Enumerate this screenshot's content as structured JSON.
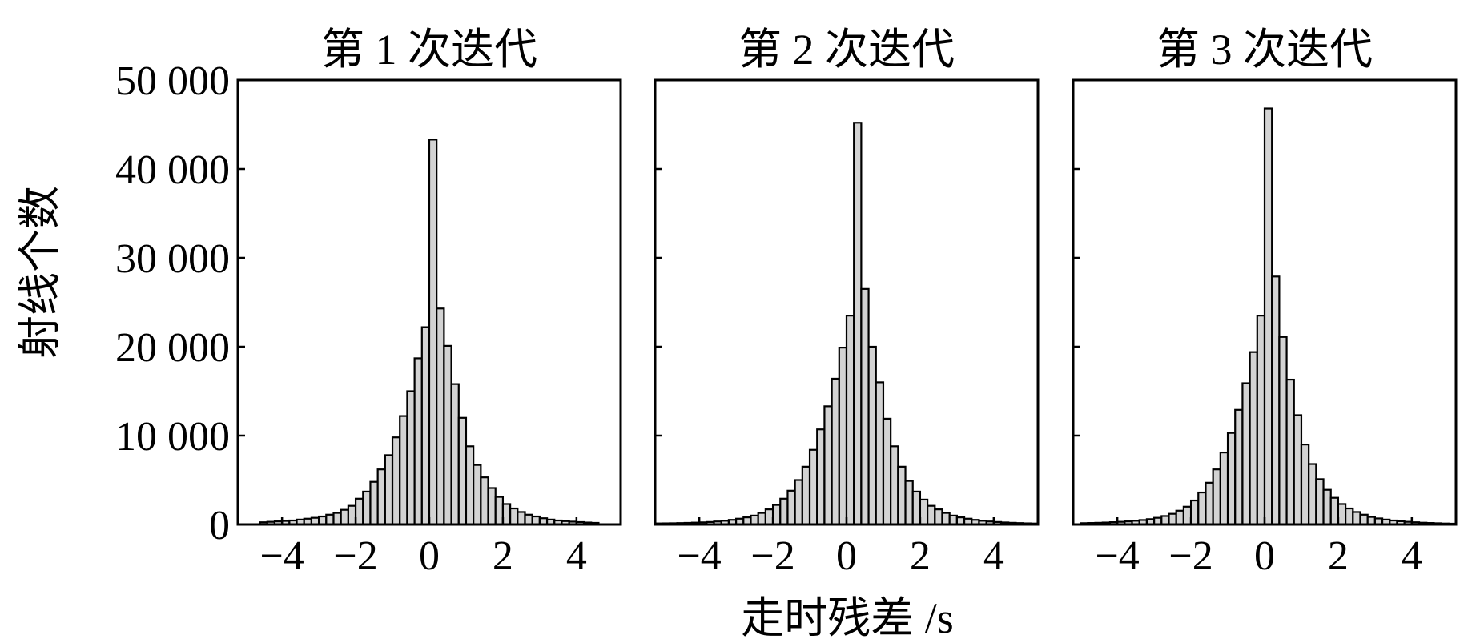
{
  "figure": {
    "ylabel": "射线个数",
    "xlabel": "走时残差 /s"
  },
  "chart_data": [
    {
      "type": "bar",
      "title": "第 1 次迭代",
      "xlabel": "走时残差 /s",
      "ylabel": "射线个数",
      "xlim": [
        -5.2,
        5.2
      ],
      "ylim": [
        0,
        50000
      ],
      "bin_width": 0.2,
      "xticks": [
        -4,
        -2,
        0,
        2,
        4
      ],
      "xtick_labels": [
        "−4",
        "−2",
        "0",
        "2",
        "4"
      ],
      "yticks": [
        0,
        10000,
        20000,
        30000,
        40000,
        50000
      ],
      "ytick_labels": [
        "0",
        "10 000",
        "20 000",
        "30 000",
        "40 000",
        "50 000"
      ],
      "bin_centers": [
        -4.5,
        -4.3,
        -4.1,
        -3.9,
        -3.7,
        -3.5,
        -3.3,
        -3.1,
        -2.9,
        -2.7,
        -2.5,
        -2.3,
        -2.1,
        -1.9,
        -1.7,
        -1.5,
        -1.3,
        -1.1,
        -0.9,
        -0.7,
        -0.5,
        -0.3,
        -0.1,
        0.1,
        0.3,
        0.5,
        0.7,
        0.9,
        1.1,
        1.3,
        1.5,
        1.7,
        1.9,
        2.1,
        2.3,
        2.5,
        2.7,
        2.9,
        3.1,
        3.3,
        3.5,
        3.7,
        3.9,
        4.1,
        4.3,
        4.5
      ],
      "values": [
        250,
        300,
        350,
        400,
        450,
        550,
        650,
        750,
        900,
        1100,
        1300,
        1650,
        2100,
        2900,
        3700,
        4800,
        6200,
        7800,
        9800,
        12200,
        15000,
        18700,
        22200,
        43300,
        24300,
        20100,
        15800,
        12000,
        8800,
        6700,
        5300,
        4100,
        3100,
        2300,
        1800,
        1400,
        1100,
        900,
        700,
        550,
        450,
        380,
        320,
        270,
        220,
        180
      ]
    },
    {
      "type": "bar",
      "title": "第 2 次迭代",
      "xlabel": "走时残差 /s",
      "ylabel": "射线个数",
      "xlim": [
        -5.2,
        5.2
      ],
      "ylim": [
        0,
        50000
      ],
      "bin_width": 0.2,
      "xticks": [
        -4,
        -2,
        0,
        2,
        4
      ],
      "xtick_labels": [
        "−4",
        "−2",
        "0",
        "2",
        "4"
      ],
      "yticks": [
        0,
        10000,
        20000,
        30000,
        40000,
        50000
      ],
      "bin_centers": [
        -5.1,
        -4.9,
        -4.7,
        -4.5,
        -4.3,
        -4.1,
        -3.9,
        -3.7,
        -3.5,
        -3.3,
        -3.1,
        -2.9,
        -2.7,
        -2.5,
        -2.3,
        -2.1,
        -1.9,
        -1.7,
        -1.5,
        -1.3,
        -1.1,
        -0.9,
        -0.7,
        -0.5,
        -0.3,
        -0.1,
        0.1,
        0.3,
        0.5,
        0.7,
        0.9,
        1.1,
        1.3,
        1.5,
        1.7,
        1.9,
        2.1,
        2.3,
        2.5,
        2.7,
        2.9,
        3.1,
        3.3,
        3.5,
        3.7,
        3.9,
        4.1,
        4.3,
        4.5,
        4.7,
        4.9,
        5.1
      ],
      "values": [
        120,
        130,
        140,
        160,
        180,
        210,
        240,
        280,
        340,
        420,
        520,
        650,
        800,
        1000,
        1300,
        1700,
        2200,
        2900,
        3800,
        5000,
        6500,
        8400,
        10700,
        13300,
        16400,
        19900,
        23500,
        45200,
        26500,
        20000,
        16000,
        11900,
        8800,
        6500,
        4900,
        3700,
        2800,
        2100,
        1700,
        1300,
        1000,
        800,
        650,
        520,
        420,
        340,
        280,
        230,
        190,
        160,
        130,
        110
      ]
    },
    {
      "type": "bar",
      "title": "第 3 次迭代",
      "xlabel": "走时残差 /s",
      "ylabel": "射线个数",
      "xlim": [
        -5.2,
        5.2
      ],
      "ylim": [
        0,
        50000
      ],
      "bin_width": 0.2,
      "xticks": [
        -4,
        -2,
        0,
        2,
        4
      ],
      "xtick_labels": [
        "−4",
        "−2",
        "0",
        "2",
        "4"
      ],
      "yticks": [
        0,
        10000,
        20000,
        30000,
        40000,
        50000
      ],
      "bin_centers": [
        -4.9,
        -4.7,
        -4.5,
        -4.3,
        -4.1,
        -3.9,
        -3.7,
        -3.5,
        -3.3,
        -3.1,
        -2.9,
        -2.7,
        -2.5,
        -2.3,
        -2.1,
        -1.9,
        -1.7,
        -1.5,
        -1.3,
        -1.1,
        -0.9,
        -0.7,
        -0.5,
        -0.3,
        -0.1,
        0.1,
        0.3,
        0.5,
        0.7,
        0.9,
        1.1,
        1.3,
        1.5,
        1.7,
        1.9,
        2.1,
        2.3,
        2.5,
        2.7,
        2.9,
        3.1,
        3.3,
        3.5,
        3.7,
        3.9,
        4.1,
        4.3,
        4.5,
        4.7,
        4.9,
        5.1
      ],
      "values": [
        150,
        170,
        190,
        220,
        260,
        300,
        350,
        420,
        500,
        600,
        750,
        950,
        1200,
        1550,
        2000,
        2700,
        3600,
        4700,
        6200,
        8100,
        10300,
        12900,
        15900,
        19400,
        23500,
        46800,
        27900,
        21100,
        16300,
        12300,
        9000,
        6800,
        5100,
        3900,
        3000,
        2300,
        1800,
        1400,
        1100,
        850,
        680,
        550,
        450,
        370,
        300,
        250,
        200,
        170,
        140,
        110,
        90
      ]
    }
  ]
}
